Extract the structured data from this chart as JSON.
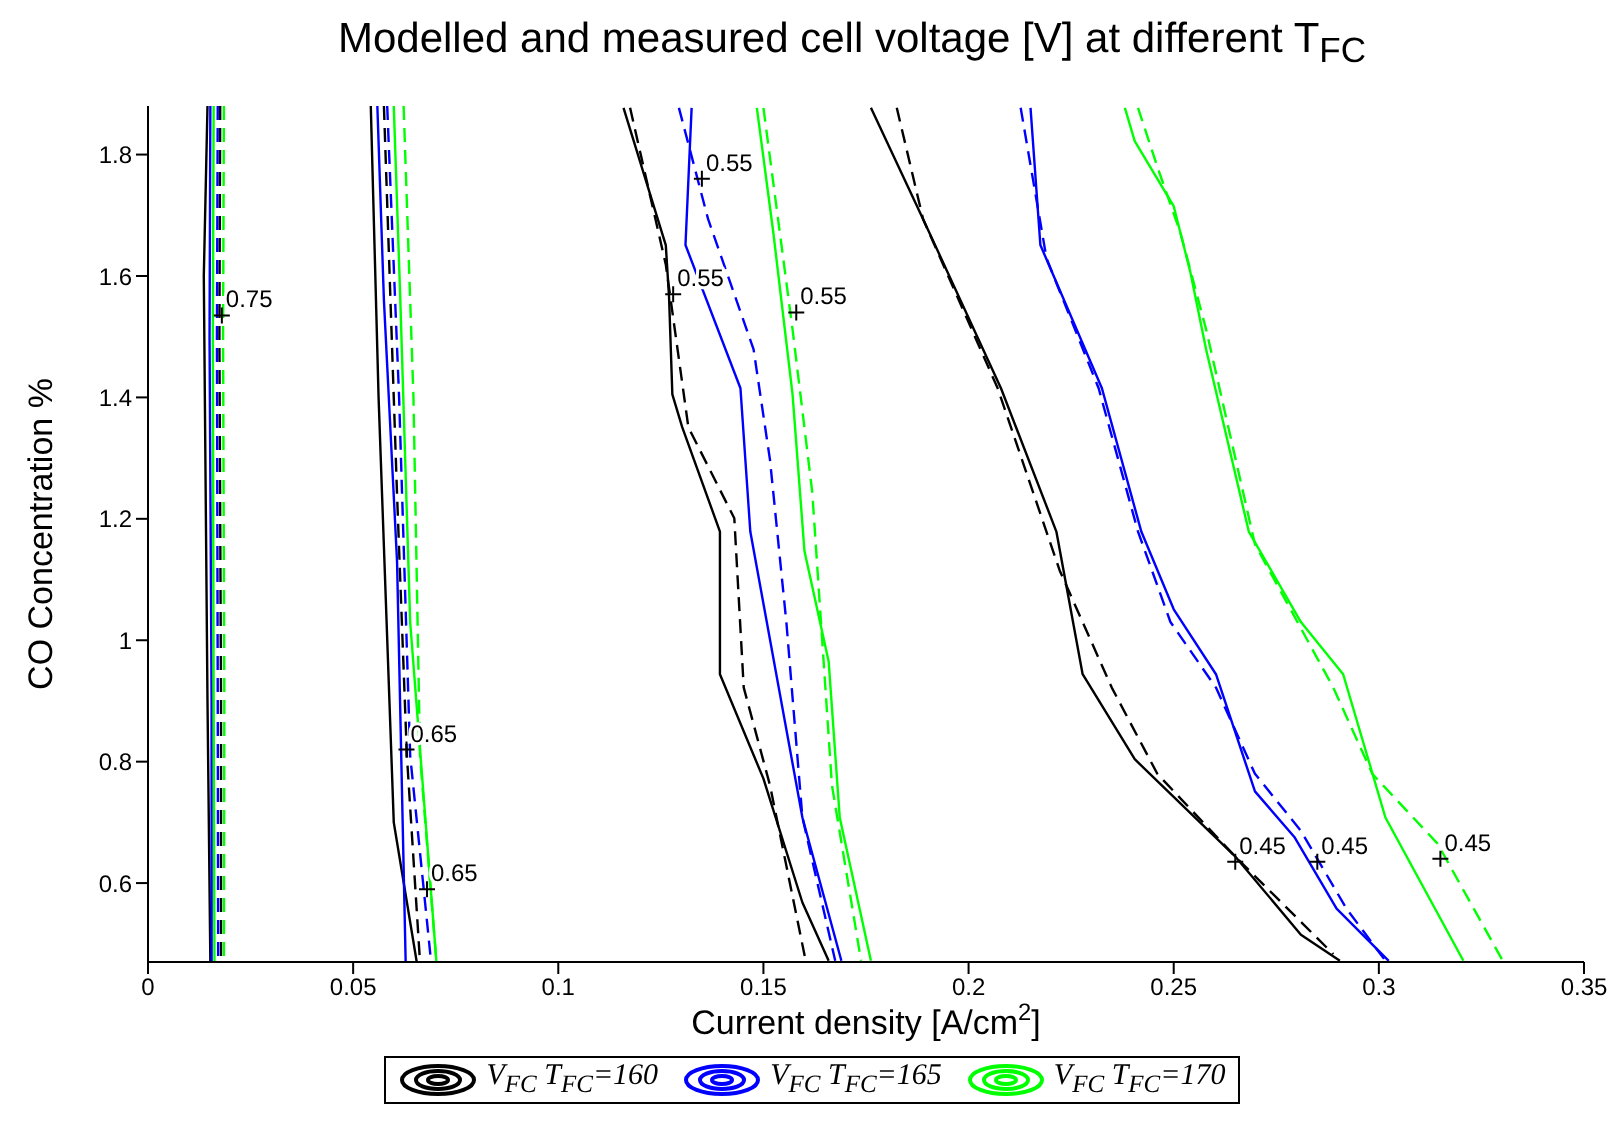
{
  "chart_data": {
    "type": "line",
    "title": "Modelled and measured cell voltage [V] at different T$_{FC}$",
    "xlabel": "Current density [A/cm$^{2}$]",
    "ylabel": "CO Concentration %",
    "xlim": [
      0,
      0.35
    ],
    "xticks": [
      0,
      0.05,
      0.1,
      0.15,
      0.2,
      0.25,
      0.3,
      0.35
    ],
    "ylim": [
      0.47,
      1.88
    ],
    "yticks": [
      0.6,
      0.8,
      1,
      1.2,
      1.4,
      1.6,
      1.8
    ],
    "legend": "bottom",
    "marker": "none",
    "series": [
      {
        "name": "V$_{FC}$ T$_{FC}$=160",
        "color": "#000000",
        "line_style": "solid",
        "x": [
          0.0145,
          0.0136,
          0.0145,
          0.0152
        ],
        "values": [
          1.88,
          1.6,
          0.9,
          0.47
        ]
      },
      {
        "color": "#000000",
        "line_style": "dashed",
        "x": [
          0.0176,
          0.0174,
          0.0178,
          0.0178
        ],
        "values": [
          1.88,
          1.5,
          0.9,
          0.47
        ]
      },
      {
        "color": "#000000",
        "line_style": "solid",
        "x": [
          0.0543,
          0.0562,
          0.0599,
          0.0655
        ],
        "values": [
          1.88,
          1.4,
          0.7,
          0.47
        ]
      },
      {
        "color": "#000000",
        "line_style": "dashed",
        "x": [
          0.0575,
          0.0607,
          0.0631,
          0.0663
        ],
        "values": [
          1.88,
          1.24,
          0.81,
          0.47
        ]
      },
      {
        "color": "#000000",
        "line_style": "solid",
        "x": [
          0.1159,
          0.1262,
          0.127,
          0.1278,
          0.1302,
          0.1394,
          0.1394,
          0.15,
          0.1595,
          0.1659
        ],
        "values": [
          1.877,
          1.651,
          1.565,
          1.405,
          1.351,
          1.179,
          0.944,
          0.772,
          0.568,
          0.472
        ]
      },
      {
        "color": "#000000",
        "line_style": "dashed",
        "x": [
          0.1175,
          0.1262,
          0.1317,
          0.1429,
          0.1452,
          0.1516,
          0.1603
        ],
        "values": [
          1.877,
          1.619,
          1.351,
          1.201,
          0.922,
          0.761,
          0.472
        ]
      },
      {
        "color": "#000000",
        "line_style": "solid",
        "x": [
          0.1762,
          0.1889,
          0.2079,
          0.2214,
          0.2278,
          0.2405,
          0.2651,
          0.281,
          0.2905
        ],
        "values": [
          1.877,
          1.694,
          1.415,
          1.179,
          0.944,
          0.804,
          0.643,
          0.515,
          0.472
        ]
      },
      {
        "color": "#000000",
        "line_style": "dashed",
        "x": [
          0.1825,
          0.1889,
          0.2071,
          0.2222,
          0.2349,
          0.246,
          0.2651,
          0.2889
        ],
        "values": [
          1.877,
          1.694,
          1.415,
          1.115,
          0.922,
          0.78,
          0.643,
          0.483
        ]
      },
      {
        "name": "V$_{FC}$ T$_{FC}$=165",
        "color": "#0000ff",
        "line_style": "solid",
        "x": [
          0.0152,
          0.015,
          0.0155,
          0.0155
        ],
        "values": [
          1.88,
          1.5,
          0.9,
          0.47
        ]
      },
      {
        "color": "#0000ff",
        "line_style": "dashed",
        "x": [
          0.017,
          0.0168,
          0.017,
          0.0171
        ],
        "values": [
          1.88,
          1.5,
          0.9,
          0.47
        ]
      },
      {
        "color": "#0000ff",
        "line_style": "solid",
        "x": [
          0.0559,
          0.0575,
          0.0607,
          0.0628
        ],
        "values": [
          1.88,
          1.56,
          1.13,
          0.47
        ]
      },
      {
        "color": "#0000ff",
        "line_style": "dashed",
        "x": [
          0.0583,
          0.0612,
          0.0639,
          0.069
        ],
        "values": [
          1.88,
          1.4,
          0.81,
          0.47
        ]
      },
      {
        "color": "#0000ff",
        "line_style": "solid",
        "x": [
          0.1325,
          0.131,
          0.1444,
          0.1468,
          0.1595,
          0.169
        ],
        "values": [
          1.877,
          1.651,
          1.415,
          1.179,
          0.708,
          0.472
        ]
      },
      {
        "color": "#0000ff",
        "line_style": "dashed",
        "x": [
          0.1294,
          0.1365,
          0.1476,
          0.1516,
          0.1556,
          0.1595,
          0.1675
        ],
        "values": [
          1.877,
          1.694,
          1.479,
          1.297,
          1.029,
          0.708,
          0.472
        ]
      },
      {
        "color": "#0000ff",
        "line_style": "solid",
        "x": [
          0.2151,
          0.2175,
          0.2325,
          0.2421,
          0.25,
          0.2603,
          0.2698,
          0.2794,
          0.2897,
          0.3024
        ],
        "values": [
          1.877,
          1.651,
          1.415,
          1.179,
          1.051,
          0.944,
          0.751,
          0.676,
          0.558,
          0.472
        ]
      },
      {
        "color": "#0000ff",
        "line_style": "dashed",
        "x": [
          0.2127,
          0.219,
          0.2317,
          0.2413,
          0.2492,
          0.2603,
          0.2698,
          0.281,
          0.2921,
          0.3016
        ],
        "values": [
          1.877,
          1.629,
          1.415,
          1.179,
          1.03,
          0.922,
          0.78,
          0.686,
          0.558,
          0.472
        ]
      },
      {
        "name": "V$_{FC}$ T$_{FC}$=170",
        "color": "#00ff00",
        "line_style": "solid",
        "x": [
          0.016,
          0.0158,
          0.016,
          0.0162
        ],
        "values": [
          1.88,
          1.5,
          0.9,
          0.47
        ]
      },
      {
        "color": "#00ff00",
        "line_style": "dashed",
        "x": [
          0.0185,
          0.0183,
          0.0186,
          0.0185
        ],
        "values": [
          1.88,
          1.5,
          0.9,
          0.47
        ]
      },
      {
        "color": "#00ff00",
        "line_style": "solid",
        "x": [
          0.0599,
          0.0615,
          0.0639,
          0.0703
        ],
        "values": [
          1.88,
          1.56,
          1.03,
          0.47
        ]
      },
      {
        "color": "#00ff00",
        "line_style": "dashed",
        "x": [
          0.0623,
          0.0647,
          0.0663,
          0.0703
        ],
        "values": [
          1.88,
          1.4,
          0.81,
          0.47
        ]
      },
      {
        "color": "#00ff00",
        "line_style": "solid",
        "x": [
          0.1484,
          0.1524,
          0.1571,
          0.16,
          0.1659,
          0.1686,
          0.1762
        ],
        "values": [
          1.877,
          1.672,
          1.405,
          1.147,
          0.965,
          0.708,
          0.472
        ]
      },
      {
        "color": "#00ff00",
        "line_style": "dashed",
        "x": [
          0.15,
          0.1571,
          0.1619,
          0.1667,
          0.1738
        ],
        "values": [
          1.877,
          1.512,
          1.244,
          0.761,
          0.472
        ]
      },
      {
        "color": "#00ff00",
        "line_style": "solid",
        "x": [
          0.2381,
          0.2405,
          0.25,
          0.254,
          0.2579,
          0.2683,
          0.281,
          0.2913,
          0.3016,
          0.3206
        ],
        "values": [
          1.877,
          1.822,
          1.715,
          1.608,
          1.479,
          1.179,
          1.03,
          0.944,
          0.708,
          0.472
        ]
      },
      {
        "color": "#00ff00",
        "line_style": "dashed",
        "x": [
          0.2413,
          0.246,
          0.2516,
          0.2579,
          0.2698,
          0.2889,
          0.2984,
          0.3143,
          0.3302
        ],
        "values": [
          1.877,
          1.78,
          1.672,
          1.512,
          1.158,
          0.922,
          0.78,
          0.665,
          0.472
        ]
      }
    ],
    "annotations": [
      {
        "text": "0.75",
        "x": 0.018,
        "y": 1.535
      },
      {
        "text": "0.65",
        "x": 0.063,
        "y": 0.82
      },
      {
        "text": "0.65",
        "x": 0.068,
        "y": 0.59
      },
      {
        "text": "0.55",
        "x": 0.128,
        "y": 1.57
      },
      {
        "text": "0.55",
        "x": 0.135,
        "y": 1.76
      },
      {
        "text": "0.55",
        "x": 0.158,
        "y": 1.54
      },
      {
        "text": "0.45",
        "x": 0.265,
        "y": 0.635
      },
      {
        "text": "0.45",
        "x": 0.285,
        "y": 0.635
      },
      {
        "text": "0.45",
        "x": 0.315,
        "y": 0.64
      }
    ]
  }
}
